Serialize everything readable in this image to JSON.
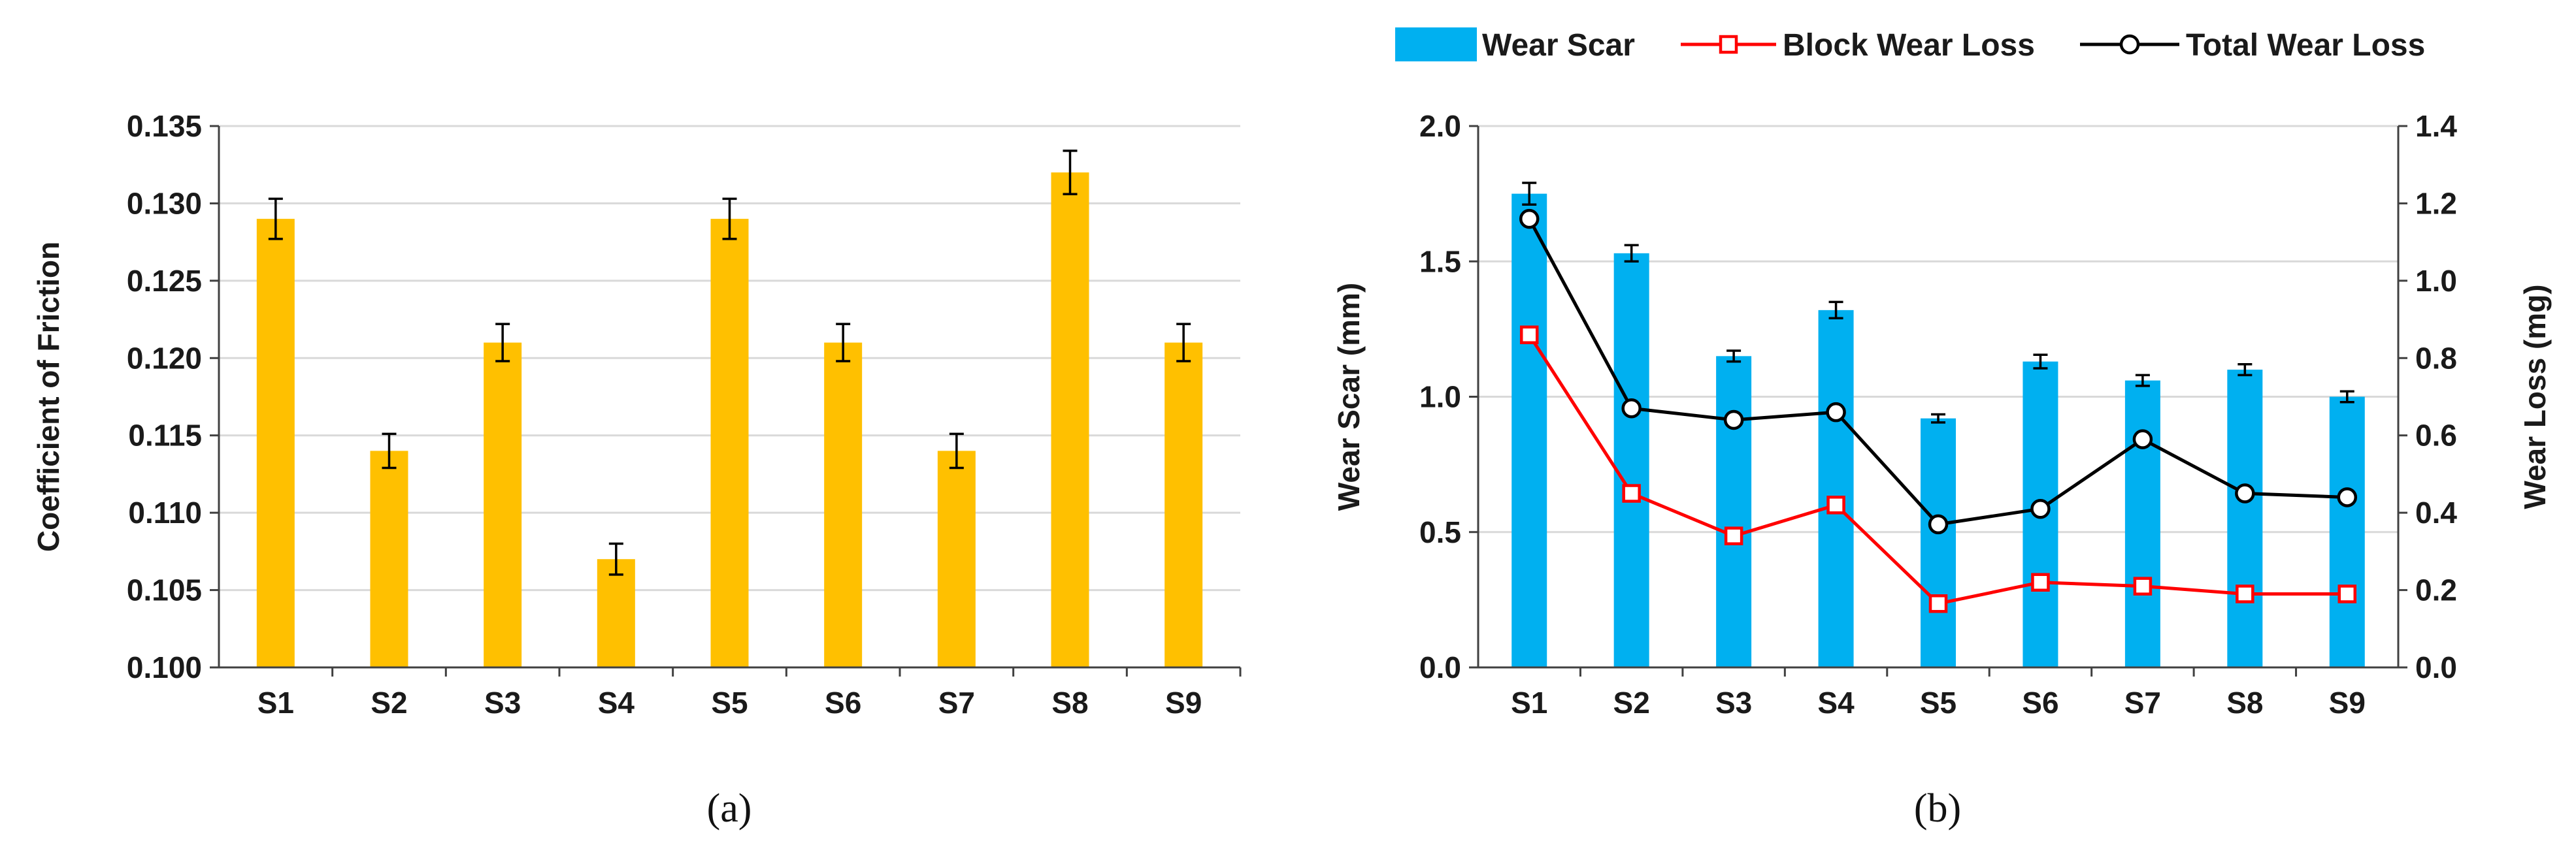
{
  "colors": {
    "friction_bar": "#FFC000",
    "wear_scar_bar": "#00B0F0",
    "block_wear_line": "#FF0000",
    "total_wear_line": "#000000",
    "gridline": "#D9D9D9",
    "axis": "#404040"
  },
  "chart_data": [
    {
      "type": "bar",
      "panel_label": "(a)",
      "title": "",
      "categories": [
        "S1",
        "S2",
        "S3",
        "S4",
        "S5",
        "S6",
        "S7",
        "S8",
        "S9"
      ],
      "series": [
        {
          "name": "Coefficient of Friction",
          "values": [
            0.129,
            0.114,
            0.121,
            0.107,
            0.129,
            0.121,
            0.114,
            0.132,
            0.121
          ],
          "errors": [
            0.0013,
            0.0011,
            0.0012,
            0.001,
            0.0013,
            0.0012,
            0.0011,
            0.0014,
            0.0012
          ]
        }
      ],
      "xlabel": "",
      "ylabel": "Coefficient of Friction",
      "ylim": [
        0.1,
        0.135
      ],
      "yticks": [
        "0.100",
        "0.105",
        "0.110",
        "0.115",
        "0.120",
        "0.125",
        "0.130",
        "0.135"
      ],
      "grid": true,
      "legend": "none"
    },
    {
      "type": "bar",
      "panel_label": "(b)",
      "title": "",
      "categories": [
        "S1",
        "S2",
        "S3",
        "S4",
        "S5",
        "S6",
        "S7",
        "S8",
        "S9"
      ],
      "series": [
        {
          "name": "Wear Scar",
          "type": "bar",
          "axis": "left",
          "values": [
            1.75,
            1.53,
            1.15,
            1.32,
            0.92,
            1.13,
            1.06,
            1.1,
            1.0
          ],
          "errors": [
            0.04,
            0.03,
            0.02,
            0.03,
            0.015,
            0.025,
            0.02,
            0.02,
            0.02
          ]
        },
        {
          "name": "Block Wear Loss",
          "type": "line",
          "marker": "square",
          "axis": "right",
          "values": [
            0.86,
            0.45,
            0.34,
            0.42,
            0.165,
            0.22,
            0.21,
            0.19,
            0.19
          ]
        },
        {
          "name": "Total Wear Loss",
          "type": "line",
          "marker": "circle",
          "axis": "right",
          "values": [
            1.16,
            0.67,
            0.64,
            0.66,
            0.37,
            0.41,
            0.59,
            0.45,
            0.44
          ]
        }
      ],
      "xlabel": "",
      "ylabel": "Wear Scar (mm)",
      "ylim": [
        0,
        2.0
      ],
      "yticks": [
        "0.0",
        "0.5",
        "1.0",
        "1.5",
        "2.0"
      ],
      "y2label": "Wear Loss (mg)",
      "y2lim": [
        0,
        1.4
      ],
      "y2ticks": [
        "0.0",
        "0.2",
        "0.4",
        "0.6",
        "0.8",
        "1.0",
        "1.2",
        "1.4"
      ],
      "grid": true,
      "legend": "top"
    }
  ]
}
